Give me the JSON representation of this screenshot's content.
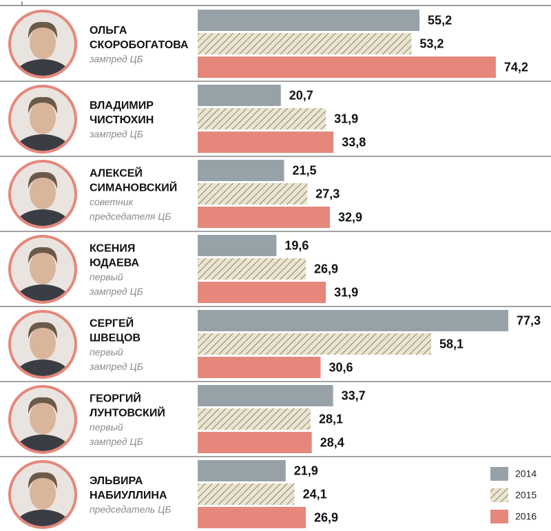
{
  "chart_data": {
    "type": "bar",
    "categories": [
      [
        "ОЛЬГА",
        "СКОРОБОГАТОВА"
      ],
      [
        "ВЛАДИМИР",
        "ЧИСТЮХИН"
      ],
      [
        "АЛЕКСЕЙ",
        "СИМАНОВСКИЙ"
      ],
      [
        "КСЕНИЯ",
        "ЮДАЕВА"
      ],
      [
        "СЕРГЕЙ",
        "ШВЕЦОВ"
      ],
      [
        "ГЕОРГИЙ",
        "ЛУНТОВСКИЙ"
      ],
      [
        "ЭЛЬВИРА",
        "НАБИУЛЛИНА"
      ]
    ],
    "roles": [
      [
        "зампред ЦБ"
      ],
      [
        "зампред ЦБ"
      ],
      [
        "советник",
        "председателя ЦБ"
      ],
      [
        "первый",
        "зампред ЦБ"
      ],
      [
        "первый",
        "зампред ЦБ"
      ],
      [
        "первый",
        "зампред ЦБ"
      ],
      [
        "председатель ЦБ"
      ]
    ],
    "series": [
      {
        "name": "2014",
        "color": "#97a2a8",
        "hatch": false,
        "values": [
          55.2,
          20.7,
          21.5,
          19.6,
          77.3,
          33.7,
          21.9
        ],
        "value_labels": [
          "55,2",
          "20,7",
          "21,5",
          "19,6",
          "77,3",
          "33,7",
          "21,9"
        ]
      },
      {
        "name": "2015",
        "color": "#ebe5cf",
        "hatch": true,
        "values": [
          53.2,
          31.9,
          27.3,
          26.9,
          58.1,
          28.1,
          24.1
        ],
        "value_labels": [
          "53,2",
          "31,9",
          "27,3",
          "26,9",
          "58,1",
          "28,1",
          "24,1"
        ]
      },
      {
        "name": "2016",
        "color": "#e5877b",
        "hatch": false,
        "values": [
          74.2,
          33.8,
          32.9,
          31.9,
          30.6,
          28.4,
          26.9
        ],
        "value_labels": [
          "74,2",
          "33,8",
          "32,9",
          "31,9",
          "30,6",
          "28,4",
          "26,9"
        ]
      }
    ]
  }
}
